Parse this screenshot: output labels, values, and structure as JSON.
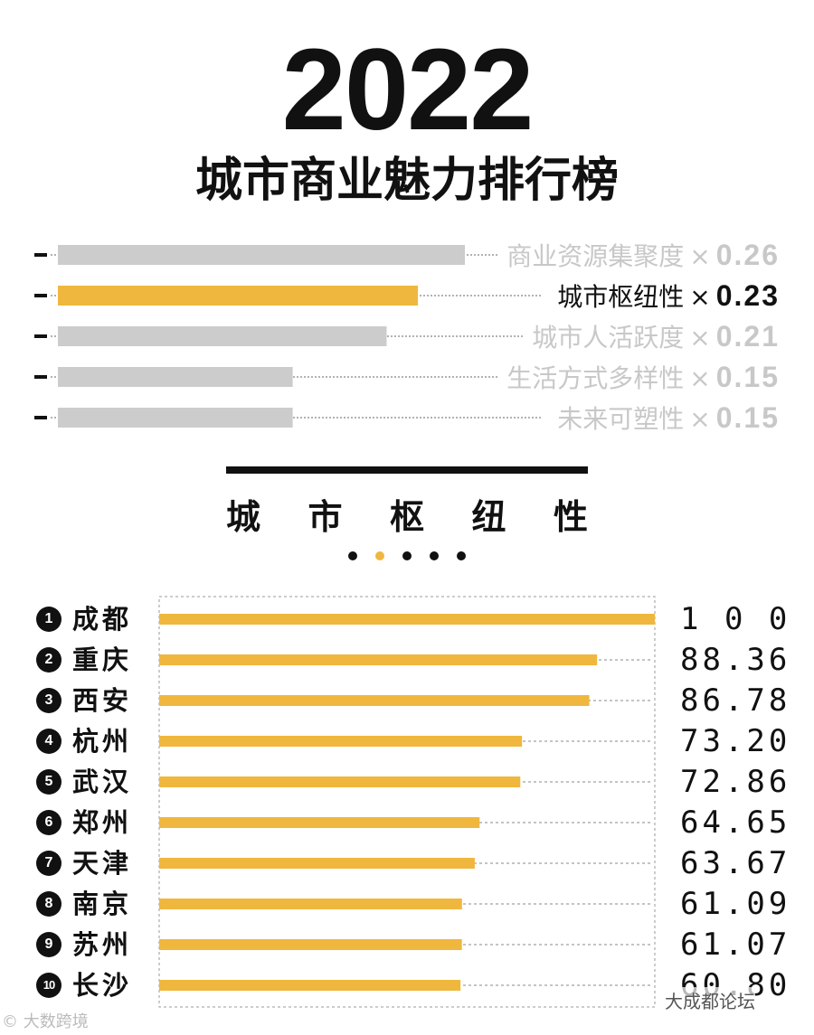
{
  "year": "2022",
  "title": "城市商业魅力排行榜",
  "weights": [
    {
      "name": "商业资源集聚度",
      "times": "×",
      "factor": "0.26",
      "value": 0.26,
      "active": false
    },
    {
      "name": "城市枢纽性",
      "times": "×",
      "factor": "0.23",
      "value": 0.23,
      "active": true
    },
    {
      "name": "城市人活跃度",
      "times": "×",
      "factor": "0.21",
      "value": 0.21,
      "active": false
    },
    {
      "name": "生活方式多样性",
      "times": "×",
      "factor": "0.15",
      "value": 0.15,
      "active": false
    },
    {
      "name": "未来可塑性",
      "times": "×",
      "factor": "0.15",
      "value": 0.15,
      "active": false
    }
  ],
  "section": {
    "chars": [
      "城",
      "市",
      "枢",
      "纽",
      "性"
    ],
    "active_dot": 2,
    "dot_count": 5
  },
  "colors": {
    "accent": "#f0b73e",
    "inactive_bar": "#cccccc",
    "text": "#111111"
  },
  "chart_data": {
    "type": "bar",
    "orientation": "horizontal",
    "title": "城市枢纽性",
    "xlim": [
      0,
      100
    ],
    "categories": [
      "成都",
      "重庆",
      "西安",
      "杭州",
      "武汉",
      "郑州",
      "天津",
      "南京",
      "苏州",
      "长沙"
    ],
    "ranks": [
      "1",
      "2",
      "3",
      "4",
      "5",
      "6",
      "7",
      "8",
      "9",
      "10"
    ],
    "values": [
      100,
      88.36,
      86.78,
      73.2,
      72.86,
      64.65,
      63.67,
      61.09,
      61.07,
      60.8
    ],
    "labels": [
      "1 0 0",
      "88.36",
      "86.78",
      "73.20",
      "72.86",
      "64.65",
      "63.67",
      "61.09",
      "61.07",
      "60.80"
    ]
  },
  "watermarks": {
    "left": "© 大数跨境",
    "right": "大成都论坛"
  }
}
